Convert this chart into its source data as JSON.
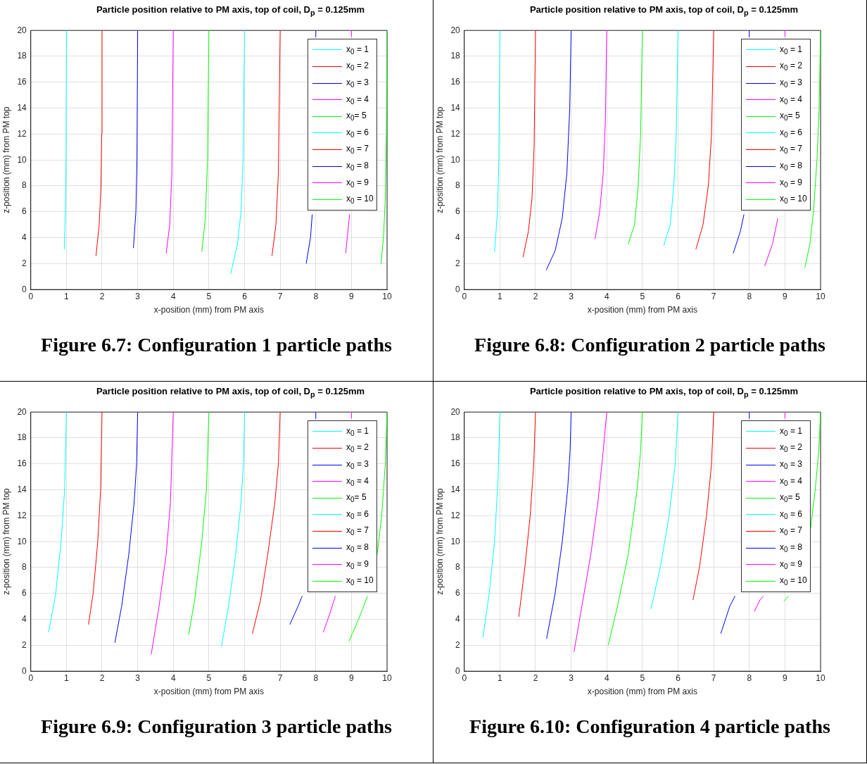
{
  "chart_data": [
    {
      "type": "line",
      "title": "Particle position relative to PM axis, top of coil, D$_{p}$ = 0.125mm",
      "xlabel": "x-position (mm) from PM axis",
      "ylabel": "z-position (mm) from PM top",
      "xlim": [
        0,
        10
      ],
      "ylim": [
        0,
        20
      ],
      "xticks": [
        0,
        1,
        2,
        3,
        4,
        5,
        6,
        7,
        8,
        9,
        10
      ],
      "yticks": [
        0,
        2,
        4,
        6,
        8,
        10,
        12,
        14,
        16,
        18,
        20
      ],
      "grid": true,
      "legend": "top right",
      "marker": "none",
      "line_style": "solid",
      "annotations": [
        "Figure 6.7: Configuration 1 particle paths"
      ],
      "series": [
        {
          "name": "x$_{0}$ = 1",
          "color": "#00ffff",
          "x": [
            0.94,
            0.97,
            0.99,
            1
          ],
          "values": [
            3.1,
            6,
            10,
            20
          ]
        },
        {
          "name": "x$_{0}$ = 2",
          "color": "#ff0000",
          "x": [
            1.83,
            1.92,
            1.97,
            1.99,
            2
          ],
          "values": [
            2.6,
            5,
            8,
            12,
            20
          ]
        },
        {
          "name": "x$_{0}$ = 3",
          "color": "#0000ff",
          "x": [
            2.88,
            2.95,
            2.98,
            3
          ],
          "values": [
            3.2,
            6,
            10,
            20
          ]
        },
        {
          "name": "x$_{0}$ = 4",
          "color": "#ff00ff",
          "x": [
            3.8,
            3.9,
            3.96,
            4
          ],
          "values": [
            2.8,
            5,
            9,
            20
          ]
        },
        {
          "name": "x$_{0}$= 5",
          "color": "#00ff00",
          "x": [
            4.8,
            4.9,
            4.96,
            5
          ],
          "values": [
            2.9,
            5.5,
            10,
            20
          ]
        },
        {
          "name": "x$_{0}$ = 6",
          "color": "#00ffff",
          "x": [
            5.61,
            5.8,
            5.9,
            5.96,
            6
          ],
          "values": [
            1.2,
            3.5,
            6,
            10,
            20
          ]
        },
        {
          "name": "x$_{0}$ = 7",
          "color": "#ff0000",
          "x": [
            6.77,
            6.88,
            6.95,
            7
          ],
          "values": [
            2.6,
            5,
            9,
            20
          ]
        },
        {
          "name": "x$_{0}$ = 8",
          "color": "#0000ff",
          "x": [
            7.73,
            7.85,
            7.9,
            7.95,
            7.99,
            8
          ],
          "values": [
            2,
            4,
            5.8,
            null,
            19.5,
            20
          ]
        },
        {
          "name": "x$_{0}$ = 9",
          "color": "#ff00ff",
          "x": [
            8.84,
            8.9,
            8.95,
            8.98,
            9,
            9
          ],
          "values": [
            2.8,
            4.5,
            5.8,
            null,
            19.5,
            20
          ]
        },
        {
          "name": "x$_{0}$ = 10",
          "color": "#00ff00",
          "x": [
            9.83,
            9.9,
            9.95,
            9.98,
            10
          ],
          "values": [
            2,
            4,
            7,
            12,
            20
          ]
        }
      ]
    },
    {
      "type": "line",
      "title": "Particle position relative to PM axis, top of coil, D$_{p}$ = 0.125mm",
      "xlabel": "x-position (mm) from PM axis",
      "ylabel": "z-position (mm) from PM top",
      "xlim": [
        0,
        10
      ],
      "ylim": [
        0,
        20
      ],
      "xticks": [
        0,
        1,
        2,
        3,
        4,
        5,
        6,
        7,
        8,
        9,
        10
      ],
      "yticks": [
        0,
        2,
        4,
        6,
        8,
        10,
        12,
        14,
        16,
        18,
        20
      ],
      "grid": true,
      "legend": "top right",
      "marker": "none",
      "line_style": "solid",
      "annotations": [
        "Figure 6.8: Configuration 2 particle paths"
      ],
      "series": [
        {
          "name": "x$_{0}$ = 1",
          "color": "#00ffff",
          "x": [
            0.85,
            0.93,
            0.97,
            1
          ],
          "values": [
            2.9,
            6,
            10,
            20
          ]
        },
        {
          "name": "x$_{0}$ = 2",
          "color": "#ff0000",
          "x": [
            1.65,
            1.8,
            1.9,
            1.96,
            2
          ],
          "values": [
            2.5,
            4.5,
            7,
            11,
            20
          ]
        },
        {
          "name": "x$_{0}$ = 3",
          "color": "#0000ff",
          "x": [
            2.3,
            2.55,
            2.75,
            2.88,
            2.96,
            3
          ],
          "values": [
            1.5,
            3,
            5.5,
            9,
            14,
            20
          ]
        },
        {
          "name": "x$_{0}$ = 4",
          "color": "#ff00ff",
          "x": [
            3.67,
            3.8,
            3.9,
            3.96,
            4
          ],
          "values": [
            3.9,
            6,
            9,
            13,
            20
          ]
        },
        {
          "name": "x$_{0}$= 5",
          "color": "#00ff00",
          "x": [
            4.6,
            4.78,
            4.88,
            4.95,
            5
          ],
          "values": [
            3.5,
            5,
            8,
            12,
            20
          ]
        },
        {
          "name": "x$_{0}$ = 6",
          "color": "#00ffff",
          "x": [
            5.6,
            5.78,
            5.88,
            5.95,
            6
          ],
          "values": [
            3.4,
            5,
            8,
            12,
            20
          ]
        },
        {
          "name": "x$_{0}$ = 7",
          "color": "#ff0000",
          "x": [
            6.5,
            6.7,
            6.85,
            6.94,
            7
          ],
          "values": [
            3.1,
            5,
            8,
            12,
            20
          ]
        },
        {
          "name": "x$_{0}$ = 8",
          "color": "#0000ff",
          "x": [
            7.55,
            7.75,
            7.85,
            7.95,
            7.99,
            8
          ],
          "values": [
            2.8,
            4.5,
            5.8,
            null,
            19.5,
            20
          ]
        },
        {
          "name": "x$_{0}$ = 9",
          "color": "#ff00ff",
          "x": [
            8.43,
            8.65,
            8.8,
            8.9,
            9,
            9
          ],
          "values": [
            1.8,
            3.5,
            5.5,
            null,
            19.5,
            20
          ]
        },
        {
          "name": "x$_{0}$ = 10",
          "color": "#00ff00",
          "x": [
            9.56,
            9.7,
            9.8,
            9.9,
            9.96,
            10
          ],
          "values": [
            1.7,
            3.5,
            6,
            10,
            14,
            20
          ]
        }
      ]
    },
    {
      "type": "line",
      "title": "Particle position relative to PM axis, top of coil, D$_{p}$ = 0.125mm",
      "xlabel": "x-position (mm) from PM axis",
      "ylabel": "z-position (mm) from PM top",
      "xlim": [
        0,
        10
      ],
      "ylim": [
        0,
        20
      ],
      "xticks": [
        0,
        1,
        2,
        3,
        4,
        5,
        6,
        7,
        8,
        9,
        10
      ],
      "yticks": [
        0,
        2,
        4,
        6,
        8,
        10,
        12,
        14,
        16,
        18,
        20
      ],
      "grid": true,
      "legend": "top right",
      "marker": "none",
      "line_style": "solid",
      "annotations": [
        "Figure 6.9: Configuration 3 particle paths"
      ],
      "series": [
        {
          "name": "x$_{0}$ = 1",
          "color": "#00ffff",
          "x": [
            0.5,
            0.7,
            0.85,
            0.95,
            1
          ],
          "values": [
            3,
            6,
            10,
            14,
            20
          ]
        },
        {
          "name": "x$_{0}$ = 2",
          "color": "#ff0000",
          "x": [
            1.62,
            1.75,
            1.88,
            1.96,
            2
          ],
          "values": [
            3.6,
            6,
            10,
            14,
            20
          ]
        },
        {
          "name": "x$_{0}$ = 3",
          "color": "#0000ff",
          "x": [
            2.36,
            2.55,
            2.75,
            2.9,
            2.97,
            3
          ],
          "values": [
            2.2,
            5,
            9,
            13,
            16,
            20
          ]
        },
        {
          "name": "x$_{0}$ = 4",
          "color": "#ff00ff",
          "x": [
            3.38,
            3.6,
            3.8,
            3.92,
            4
          ],
          "values": [
            1.3,
            5,
            9,
            13,
            20
          ]
        },
        {
          "name": "x$_{0}$= 5",
          "color": "#00ff00",
          "x": [
            4.43,
            4.6,
            4.8,
            4.93,
            5
          ],
          "values": [
            2.8,
            5.5,
            10,
            14,
            20
          ]
        },
        {
          "name": "x$_{0}$ = 6",
          "color": "#00ffff",
          "x": [
            5.35,
            5.55,
            5.75,
            5.9,
            5.97,
            6
          ],
          "values": [
            1.9,
            5,
            9,
            13,
            16,
            20
          ]
        },
        {
          "name": "x$_{0}$ = 7",
          "color": "#ff0000",
          "x": [
            6.22,
            6.45,
            6.65,
            6.85,
            6.95,
            7
          ],
          "values": [
            2.9,
            5.5,
            9,
            13,
            16,
            20
          ]
        },
        {
          "name": "x$_{0}$ = 8",
          "color": "#0000ff",
          "x": [
            7.27,
            7.5,
            7.62,
            7.8,
            7.99,
            8
          ],
          "values": [
            3.6,
            5,
            5.8,
            null,
            19.5,
            20
          ]
        },
        {
          "name": "x$_{0}$ = 9",
          "color": "#ff00ff",
          "x": [
            8.21,
            8.4,
            8.55,
            8.8,
            9,
            9
          ],
          "values": [
            3,
            4.5,
            5.8,
            null,
            19.5,
            20
          ]
        },
        {
          "name": "x$_{0}$ = 10",
          "color": "#00ff00",
          "x": [
            8.93,
            9.2,
            9.45,
            9.6,
            9.72,
            9.85,
            9.95,
            10
          ],
          "values": [
            2.3,
            4,
            5.8,
            null,
            9,
            12,
            16,
            20
          ]
        }
      ]
    },
    {
      "type": "line",
      "title": "Particle position relative to PM axis, top of coil, D$_{p}$ = 0.125mm",
      "xlabel": "x-position (mm) from PM axis",
      "ylabel": "z-position (mm) from PM top",
      "xlim": [
        0,
        10
      ],
      "ylim": [
        0,
        20
      ],
      "xticks": [
        0,
        1,
        2,
        3,
        4,
        5,
        6,
        7,
        8,
        9,
        10
      ],
      "yticks": [
        0,
        2,
        4,
        6,
        8,
        10,
        12,
        14,
        16,
        18,
        20
      ],
      "grid": true,
      "legend": "top right",
      "marker": "none",
      "line_style": "solid",
      "annotations": [
        "Figure 6.10: Configuration 4 particle paths"
      ],
      "series": [
        {
          "name": "x$_{0}$ = 1",
          "color": "#00ffff",
          "x": [
            0.52,
            0.7,
            0.85,
            0.95,
            1
          ],
          "values": [
            2.6,
            6,
            10,
            15,
            20
          ]
        },
        {
          "name": "x$_{0}$ = 2",
          "color": "#ff0000",
          "x": [
            1.53,
            1.7,
            1.85,
            1.95,
            2
          ],
          "values": [
            4.2,
            8,
            12,
            16,
            20
          ]
        },
        {
          "name": "x$_{0}$ = 3",
          "color": "#0000ff",
          "x": [
            2.31,
            2.55,
            2.75,
            2.9,
            2.97,
            3
          ],
          "values": [
            2.5,
            6,
            10,
            14,
            17,
            20
          ]
        },
        {
          "name": "x$_{0}$ = 4",
          "color": "#ff00ff",
          "x": [
            3.08,
            3.3,
            3.55,
            3.75,
            3.9,
            4
          ],
          "values": [
            1.5,
            5,
            9,
            13,
            17,
            20
          ]
        },
        {
          "name": "x$_{0}$= 5",
          "color": "#00ff00",
          "x": [
            4.04,
            4.3,
            4.6,
            4.85,
            4.95,
            5
          ],
          "values": [
            2,
            5,
            9,
            14,
            17,
            20
          ]
        },
        {
          "name": "x$_{0}$ = 6",
          "color": "#00ffff",
          "x": [
            5.24,
            5.5,
            5.75,
            5.92,
            6
          ],
          "values": [
            4.8,
            8,
            12,
            16,
            20
          ]
        },
        {
          "name": "x$_{0}$ = 7",
          "color": "#ff0000",
          "x": [
            6.42,
            6.6,
            6.8,
            6.94,
            7
          ],
          "values": [
            5.5,
            8,
            12,
            16,
            20
          ]
        },
        {
          "name": "x$_{0}$ = 8",
          "color": "#0000ff",
          "x": [
            7.2,
            7.45,
            7.6,
            7.8,
            7.99,
            8
          ],
          "values": [
            2.9,
            5,
            5.8,
            null,
            19.5,
            20
          ]
        },
        {
          "name": "x$_{0}$ = 9",
          "color": "#ff00ff",
          "x": [
            8.14,
            8.3,
            8.4,
            8.7,
            9,
            9
          ],
          "values": [
            4.6,
            5.5,
            5.8,
            null,
            19.5,
            20
          ]
        },
        {
          "name": "x$_{0}$ = 10",
          "color": "#00ff00",
          "x": [
            8.97,
            9.1,
            9.4,
            9.72,
            9.85,
            9.95,
            10
          ],
          "values": [
            5.4,
            5.8,
            null,
            11,
            14,
            17,
            20
          ]
        }
      ]
    }
  ]
}
